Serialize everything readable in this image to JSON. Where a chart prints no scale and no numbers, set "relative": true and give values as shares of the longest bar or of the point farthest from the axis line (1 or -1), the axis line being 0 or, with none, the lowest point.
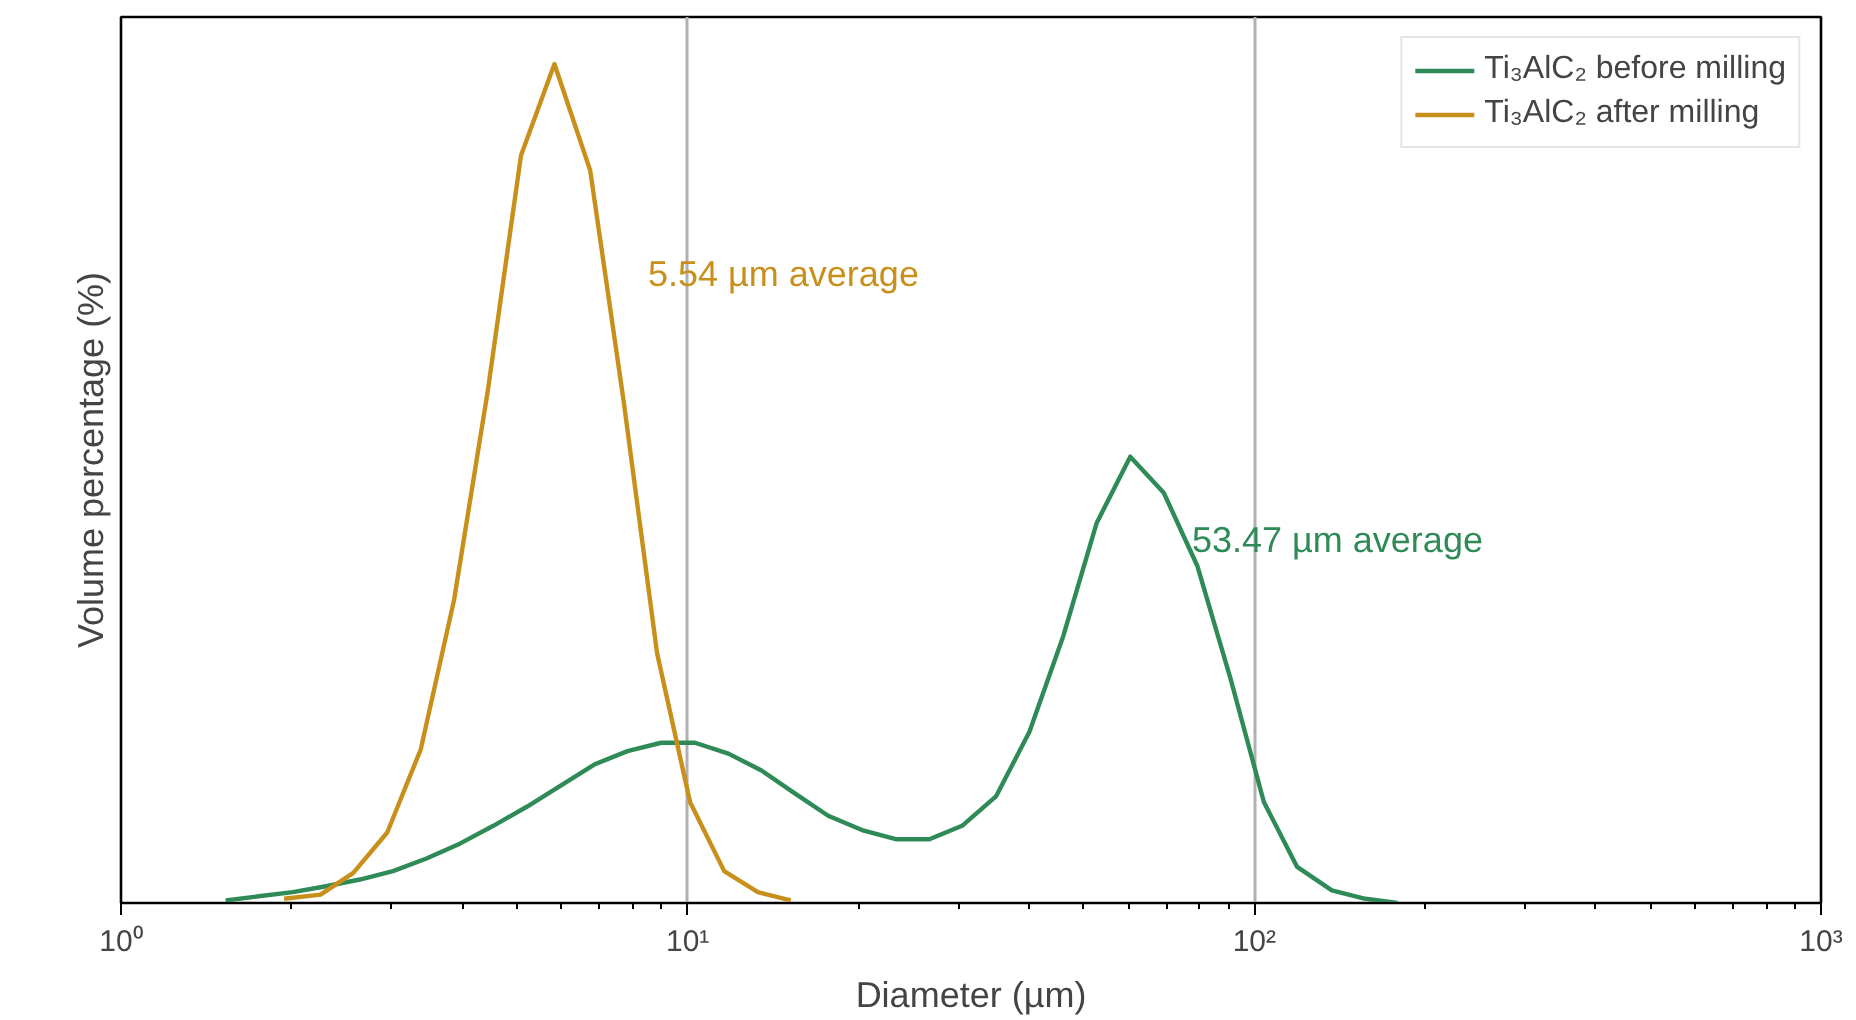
{
  "chart_data": {
    "type": "line",
    "relative": true,
    "log": "x",
    "xlabel": "Diameter (µm)",
    "ylabel": "Volume percentage (%)",
    "xlim": [
      1,
      1000
    ],
    "xticks": [
      {
        "value": 1,
        "label": "10⁰"
      },
      {
        "value": 10,
        "label": "10¹"
      },
      {
        "value": 100,
        "label": "10²"
      },
      {
        "value": 1000,
        "label": "10³"
      }
    ],
    "grid": "x",
    "legend": "top right",
    "line_style": "solid",
    "marker": "none",
    "series": [
      {
        "name": "Ti₃AlC₂ before milling",
        "color": "#2e8b57",
        "x": [
          1.53,
          1.75,
          2.01,
          2.3,
          2.64,
          3.02,
          3.46,
          3.97,
          4.54,
          5.21,
          5.97,
          6.84,
          7.83,
          8.98,
          10.3,
          11.8,
          13.5,
          15.5,
          17.7,
          20.3,
          23.3,
          26.7,
          30.5,
          35.0,
          40.1,
          46.0,
          52.7,
          60.4,
          69.2,
          79.3,
          90.8,
          104,
          119,
          137,
          157,
          179
        ],
        "values": [
          0.003,
          0.008,
          0.013,
          0.02,
          0.028,
          0.038,
          0.053,
          0.071,
          0.092,
          0.115,
          0.14,
          0.165,
          0.181,
          0.191,
          0.191,
          0.178,
          0.158,
          0.13,
          0.104,
          0.087,
          0.076,
          0.076,
          0.092,
          0.127,
          0.204,
          0.318,
          0.453,
          0.532,
          0.489,
          0.402,
          0.267,
          0.12,
          0.043,
          0.015,
          0.005,
          0.0
        ]
      },
      {
        "name": "Ti₃AlC₂ after milling",
        "color": "#c8901a",
        "x": [
          1.94,
          2.25,
          2.57,
          2.95,
          3.38,
          3.87,
          4.44,
          5.08,
          5.82,
          6.73,
          7.71,
          8.83,
          10.1,
          11.6,
          13.3,
          15.2
        ],
        "values": [
          0.005,
          0.01,
          0.036,
          0.084,
          0.183,
          0.361,
          0.611,
          0.891,
          1.0,
          0.873,
          0.598,
          0.298,
          0.12,
          0.038,
          0.013,
          0.003
        ]
      }
    ],
    "annotations": [
      "53.47 µm average",
      "5.54 µm average"
    ]
  }
}
